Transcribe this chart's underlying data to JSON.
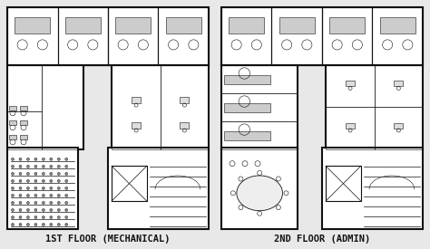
{
  "background_color": "#e8e8e8",
  "paper_color": "#ffffff",
  "line_color": "#111111",
  "title1": "1ST FLOOR (MECHANICAL)",
  "title2": "2ND FLOOR (ADMIN)",
  "title_fontsize": 7.5,
  "fig_width": 4.74,
  "fig_height": 2.75,
  "dpi": 100,
  "lw_thick": 1.5,
  "lw_mid": 0.8,
  "lw_thin": 0.4
}
